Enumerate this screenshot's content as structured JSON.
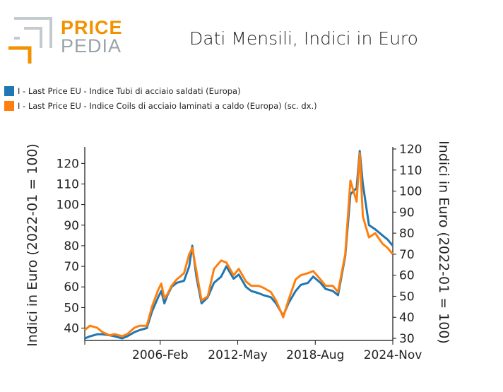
{
  "logo": {
    "word1": "PRICE",
    "word2": "PEDIA"
  },
  "title": "Dati Mensili, Indici in Euro",
  "legend": [
    {
      "label": "I - Last Price EU - Indice Tubi di acciaio saldati (Europa)",
      "color": "#1f77b4"
    },
    {
      "label": "I - Last Price EU - Indice Coils di acciaio laminati a caldo (Europa) (sc. dx.)",
      "color": "#ff7f0e"
    }
  ],
  "chart_data": {
    "type": "line",
    "xlabel": "",
    "ylabel": "Indici in Euro (2022-01 = 100)",
    "ylabel_right": "Indici in Euro (2022-01 = 100)",
    "x_ticks": [
      "2006-Feb",
      "2012-May",
      "2018-Aug",
      "2024-Nov"
    ],
    "xlim": [
      "2000-01",
      "2024-11"
    ],
    "ylim": [
      34,
      128
    ],
    "y_ticks": [
      40,
      50,
      60,
      70,
      80,
      90,
      100,
      110,
      120
    ],
    "ylim_right": [
      29,
      121
    ],
    "y_ticks_right": [
      30,
      40,
      50,
      60,
      70,
      80,
      90,
      100,
      110,
      120
    ],
    "series": [
      {
        "name": "I - Last Price EU - Indice Tubi di acciaio saldati (Europa)",
        "color": "#1f77b4",
        "axis": "left",
        "points": [
          [
            "2000-01",
            35
          ],
          [
            "2000-06",
            36
          ],
          [
            "2001-01",
            37
          ],
          [
            "2001-06",
            37
          ],
          [
            "2002-01",
            36.5
          ],
          [
            "2002-06",
            36
          ],
          [
            "2003-01",
            35
          ],
          [
            "2003-06",
            36
          ],
          [
            "2004-01",
            38
          ],
          [
            "2004-06",
            39
          ],
          [
            "2005-01",
            40
          ],
          [
            "2005-06",
            48
          ],
          [
            "2005-12",
            55
          ],
          [
            "2006-03",
            58
          ],
          [
            "2006-06",
            52
          ],
          [
            "2006-09",
            56
          ],
          [
            "2007-01",
            60
          ],
          [
            "2007-06",
            62
          ],
          [
            "2008-01",
            63
          ],
          [
            "2008-06",
            70
          ],
          [
            "2008-09",
            80
          ],
          [
            "2009-01",
            65
          ],
          [
            "2009-06",
            52
          ],
          [
            "2009-12",
            55
          ],
          [
            "2010-06",
            62
          ],
          [
            "2011-01",
            65
          ],
          [
            "2011-06",
            70
          ],
          [
            "2012-01",
            64
          ],
          [
            "2012-06",
            66
          ],
          [
            "2013-01",
            60
          ],
          [
            "2013-06",
            58
          ],
          [
            "2014-01",
            57
          ],
          [
            "2014-06",
            56
          ],
          [
            "2015-01",
            55
          ],
          [
            "2015-06",
            52
          ],
          [
            "2016-01",
            46
          ],
          [
            "2016-06",
            52
          ],
          [
            "2017-01",
            58
          ],
          [
            "2017-06",
            61
          ],
          [
            "2018-01",
            62
          ],
          [
            "2018-06",
            65
          ],
          [
            "2019-01",
            62
          ],
          [
            "2019-06",
            59
          ],
          [
            "2020-01",
            58
          ],
          [
            "2020-06",
            56
          ],
          [
            "2021-01",
            75
          ],
          [
            "2021-06",
            105
          ],
          [
            "2021-12",
            108
          ],
          [
            "2022-03",
            126
          ],
          [
            "2022-06",
            110
          ],
          [
            "2022-12",
            90
          ],
          [
            "2023-06",
            88
          ],
          [
            "2024-01",
            85
          ],
          [
            "2024-06",
            83
          ],
          [
            "2024-11",
            80
          ]
        ]
      },
      {
        "name": "I - Last Price EU - Indice Coils di acciaio laminati a caldo (Europa) (sc. dx.)",
        "color": "#ff7f0e",
        "axis": "right",
        "points": [
          [
            "2000-01",
            34
          ],
          [
            "2000-06",
            36
          ],
          [
            "2001-01",
            35
          ],
          [
            "2001-06",
            33
          ],
          [
            "2002-01",
            31.5
          ],
          [
            "2002-06",
            32
          ],
          [
            "2003-01",
            31
          ],
          [
            "2003-06",
            32
          ],
          [
            "2004-01",
            35
          ],
          [
            "2004-06",
            36
          ],
          [
            "2005-01",
            36
          ],
          [
            "2005-06",
            45
          ],
          [
            "2005-12",
            53
          ],
          [
            "2006-03",
            56
          ],
          [
            "2006-06",
            49
          ],
          [
            "2006-09",
            51
          ],
          [
            "2007-01",
            55
          ],
          [
            "2007-06",
            58
          ],
          [
            "2008-01",
            61
          ],
          [
            "2008-06",
            70
          ],
          [
            "2008-09",
            73
          ],
          [
            "2009-01",
            62
          ],
          [
            "2009-06",
            48
          ],
          [
            "2009-12",
            50
          ],
          [
            "2010-06",
            63
          ],
          [
            "2011-01",
            67
          ],
          [
            "2011-06",
            66
          ],
          [
            "2012-01",
            60
          ],
          [
            "2012-06",
            63
          ],
          [
            "2013-01",
            57
          ],
          [
            "2013-06",
            55
          ],
          [
            "2014-01",
            55
          ],
          [
            "2014-06",
            54
          ],
          [
            "2015-01",
            52
          ],
          [
            "2015-06",
            48
          ],
          [
            "2016-01",
            40
          ],
          [
            "2016-06",
            48
          ],
          [
            "2017-01",
            58
          ],
          [
            "2017-06",
            60
          ],
          [
            "2018-01",
            61
          ],
          [
            "2018-06",
            62
          ],
          [
            "2019-01",
            58
          ],
          [
            "2019-06",
            55
          ],
          [
            "2020-01",
            55
          ],
          [
            "2020-06",
            52
          ],
          [
            "2021-01",
            70
          ],
          [
            "2021-06",
            105
          ],
          [
            "2021-12",
            95
          ],
          [
            "2022-03",
            118
          ],
          [
            "2022-06",
            88
          ],
          [
            "2022-12",
            78
          ],
          [
            "2023-06",
            80
          ],
          [
            "2024-01",
            75
          ],
          [
            "2024-06",
            73
          ],
          [
            "2024-11",
            70
          ]
        ]
      }
    ]
  }
}
